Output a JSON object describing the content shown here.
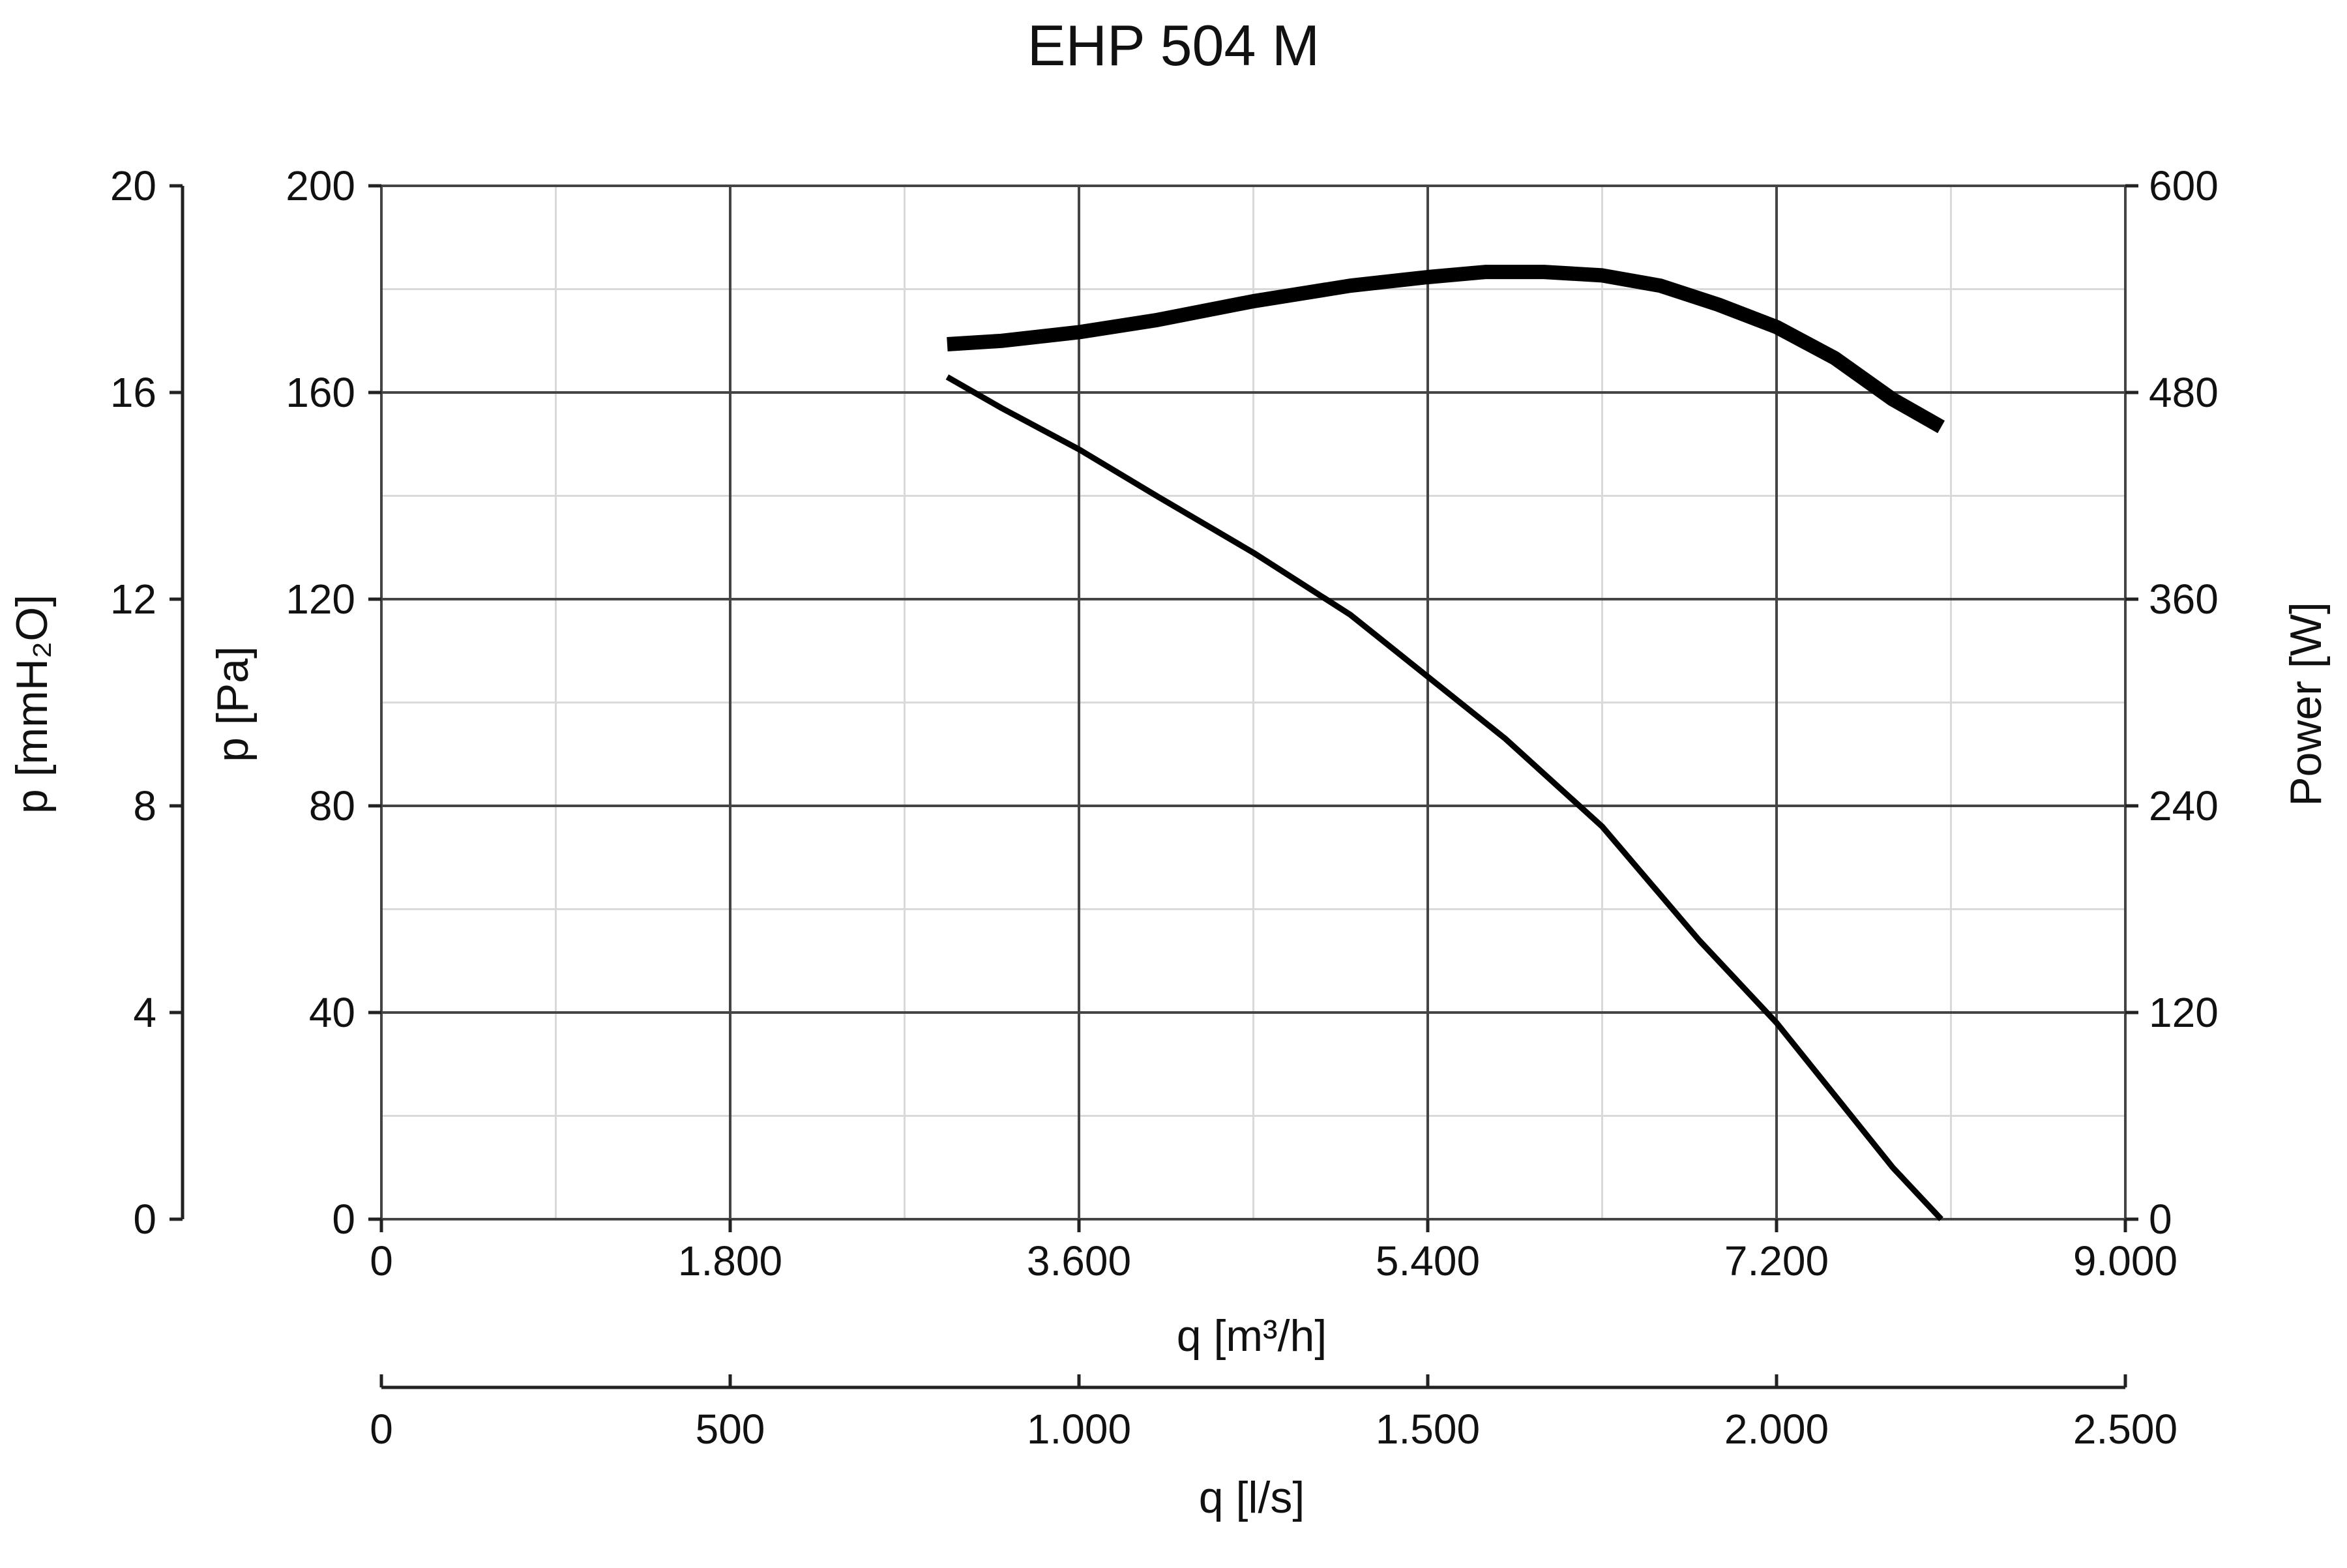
{
  "chart_data": {
    "type": "line",
    "title": "EHP 504 M",
    "xlabel": "q [m³/h]",
    "xlim": [
      0,
      9000
    ],
    "x_ticks": [
      "0",
      "1.800",
      "3.600",
      "5.400",
      "7.200",
      "9.000"
    ],
    "x2label": "q [l/s]",
    "x2lim": [
      0,
      2500
    ],
    "x2_ticks": [
      "0",
      "500",
      "1.000",
      "1.500",
      "2.000",
      "2.500"
    ],
    "ylabel": "p [Pa]",
    "ylim": [
      0,
      200
    ],
    "y_ticks": [
      "0",
      "40",
      "80",
      "120",
      "160",
      "200"
    ],
    "y2label": "p [mmH₂O]",
    "y2lim": [
      0,
      20
    ],
    "y2_ticks": [
      "0",
      "4",
      "8",
      "12",
      "16",
      "20"
    ],
    "y3label": "Power [W]",
    "y3lim": [
      0,
      600
    ],
    "y3_ticks": [
      "0",
      "120",
      "240",
      "360",
      "480",
      "600"
    ],
    "grid": true,
    "series": [
      {
        "axis": "pressure",
        "x": [
          2920,
          3200,
          3600,
          4000,
          4500,
          5000,
          5400,
          5800,
          6300,
          6800,
          7200,
          7500,
          7800,
          8050
        ],
        "values": [
          163,
          157,
          149,
          140,
          129,
          117,
          105,
          93,
          76,
          54,
          38,
          24,
          10,
          0
        ]
      },
      {
        "axis": "power",
        "x": [
          2920,
          3200,
          3600,
          4000,
          4500,
          5000,
          5400,
          5700,
          6000,
          6300,
          6600,
          6900,
          7200,
          7500,
          7800,
          8050
        ],
        "values": [
          508,
          510,
          515,
          522,
          533,
          542,
          547,
          550,
          550,
          548,
          542,
          531,
          518,
          500,
          476,
          460
        ]
      }
    ]
  }
}
